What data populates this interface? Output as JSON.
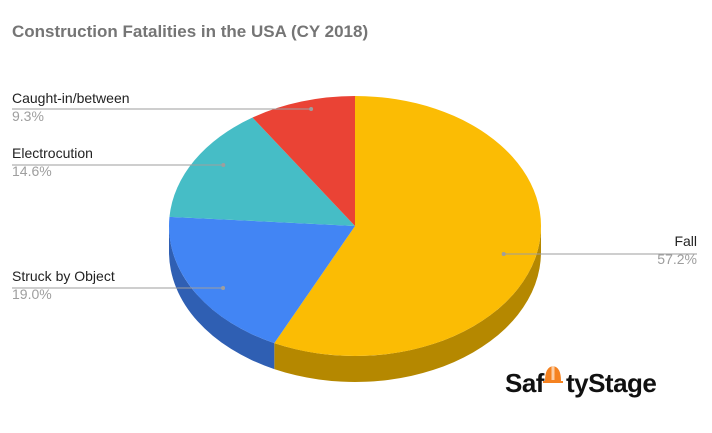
{
  "chart_data": {
    "type": "pie",
    "style": "3d",
    "title": "Construction Fatalities in the USA (CY 2018)",
    "slices": [
      {
        "label": "Fall",
        "value": 57.2,
        "value_label": "57.2%",
        "color": "#FBBC04",
        "side_color": "#B58800"
      },
      {
        "label": "Struck by Object",
        "value": 19.0,
        "value_label": "19.0%",
        "color": "#4285F4",
        "side_color": "#2F5FB3"
      },
      {
        "label": "Electrocution",
        "value": 14.6,
        "value_label": "14.6%",
        "color": "#46BDC6",
        "side_color": "#2F8A91"
      },
      {
        "label": "Caught-in/between",
        "value": 9.3,
        "value_label": "9.3%",
        "color": "#EA4335",
        "side_color": "#A8302A"
      }
    ],
    "legend": "none",
    "label_position": "outside-with-leaders"
  },
  "logo": {
    "text_before": "Saf",
    "text_after": "tyStage",
    "icon": "hard-hat-icon",
    "icon_color": "#F58220"
  }
}
